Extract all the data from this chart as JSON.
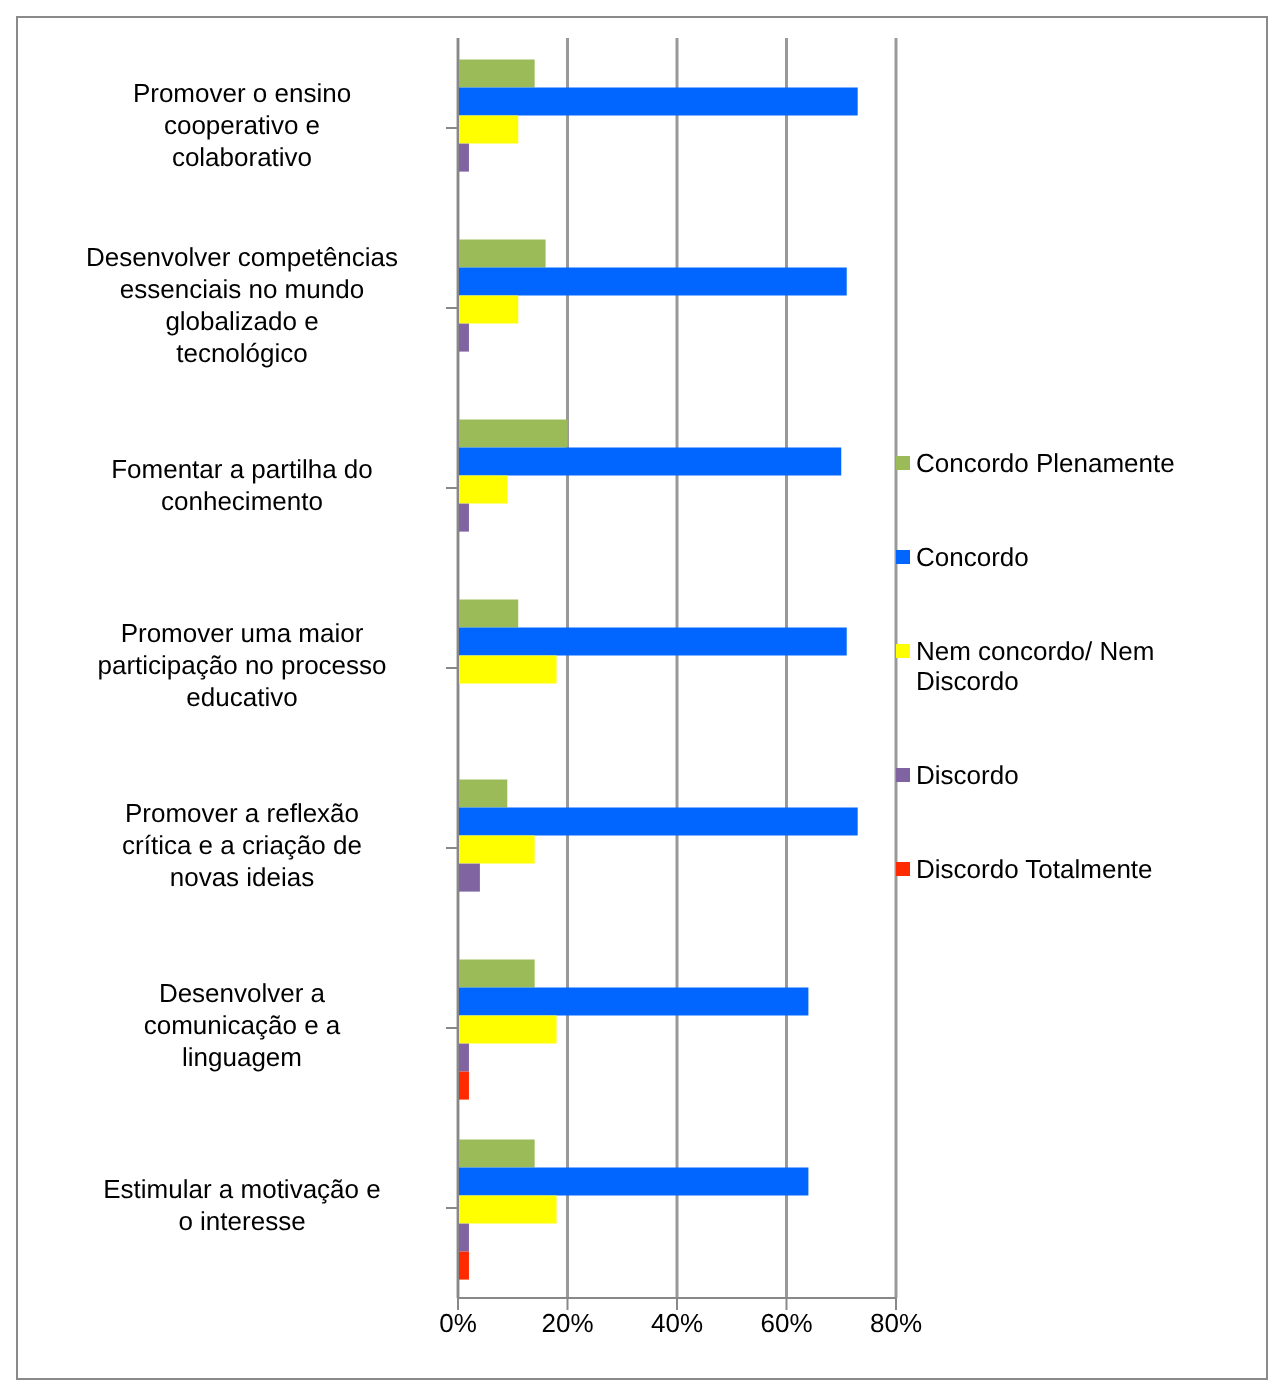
{
  "chart_data": {
    "type": "bar",
    "orientation": "horizontal",
    "categories": [
      "Promover o ensino cooperativo e colaborativo",
      "Desenvolver competências essenciais no mundo globalizado e tecnológico",
      "Fomentar a partilha do conhecimento",
      "Promover uma maior participação no processo educativo",
      "Promover a reflexão crítica e a criação de novas ideias",
      "Desenvolver a comunicação e a linguagem",
      "Estimular a motivação e o interesse"
    ],
    "series": [
      {
        "name": "Concordo Plenamente",
        "color": "#9bbb59",
        "values": [
          14,
          16,
          20,
          11,
          9,
          14,
          14
        ]
      },
      {
        "name": "Concordo",
        "color": "#0066ff",
        "values": [
          73,
          71,
          70,
          71,
          73,
          64,
          64
        ]
      },
      {
        "name": "Nem concordo/ Nem Discordo",
        "color": "#ffff00",
        "values": [
          11,
          11,
          9,
          18,
          14,
          18,
          18
        ]
      },
      {
        "name": "Discordo",
        "color": "#8064a2",
        "values": [
          2,
          2,
          2,
          0,
          4,
          2,
          2
        ]
      },
      {
        "name": "Discordo Totalmente",
        "color": "#ff2a00",
        "values": [
          0,
          0,
          0,
          0,
          0,
          2,
          2
        ]
      }
    ],
    "xlim": [
      0,
      80
    ],
    "xticks": [
      {
        "value": 0,
        "label": "0%"
      },
      {
        "value": 20,
        "label": "20%"
      },
      {
        "value": 40,
        "label": "40%"
      },
      {
        "value": 60,
        "label": "60%"
      },
      {
        "value": 80,
        "label": "80%"
      }
    ],
    "grid": "x",
    "legend": "right"
  }
}
